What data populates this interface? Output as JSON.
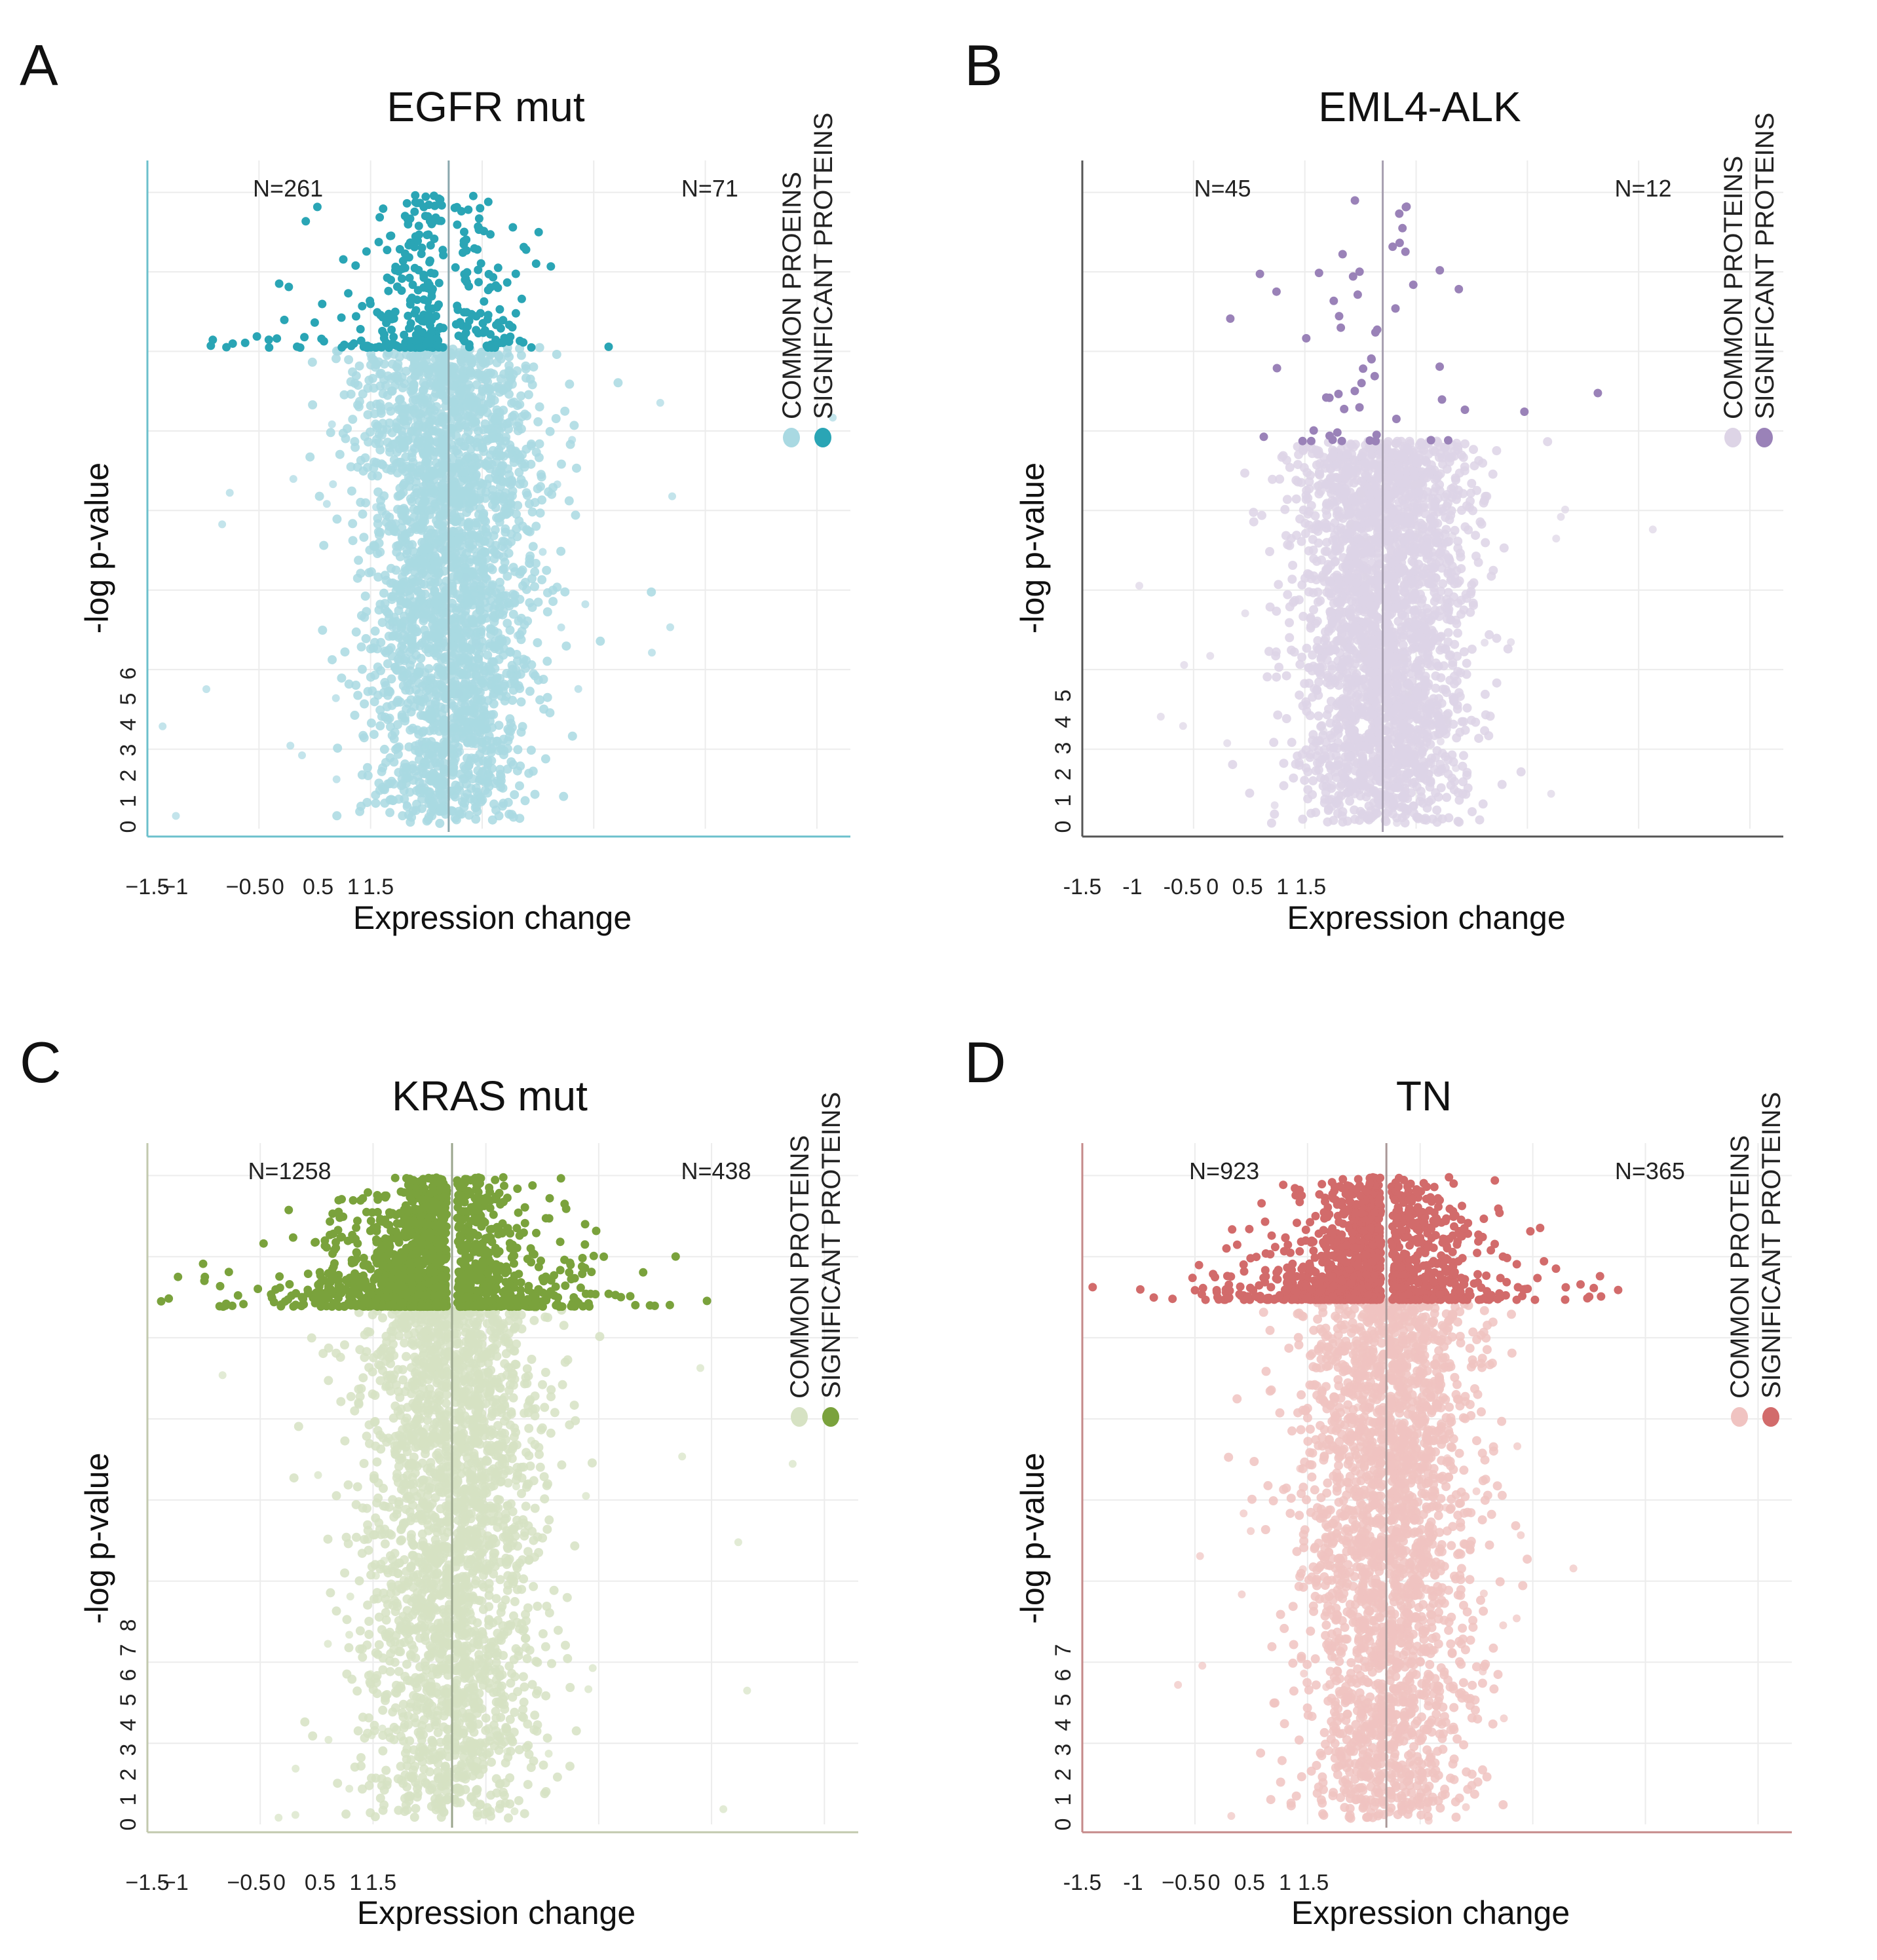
{
  "figure": {
    "panels": [
      "A",
      "B",
      "C",
      "D"
    ]
  },
  "chart_data": [
    {
      "type": "scatter",
      "panel": "A",
      "title": "EGFR mut",
      "xlabel": "Expression change",
      "ylabel": "-log p-value",
      "left_count": "N=261",
      "right_count": "N=71",
      "xlim": [
        -1.5,
        5.5
      ],
      "x_tick_labels": [
        "−1.5",
        "−1",
        "−0.5",
        "0",
        "0.5",
        "1",
        "1.5"
      ],
      "y_tick_labels": [
        "0",
        "1",
        "2",
        "3",
        "4",
        "5",
        "6"
      ],
      "legend": [
        "COMMON PROEINS",
        "SIGNIFICANT PROTEINS"
      ],
      "colors": {
        "common": "#a9d9e2",
        "significant": "#2aa5b5",
        "axis": "#6cc0cc",
        "center": "#8aa7ad"
      },
      "significance_threshold_y": 0.72,
      "series": [
        {
          "name": "common proteins",
          "count": 2600
        },
        {
          "name": "significant proteins",
          "count": 332
        }
      ]
    },
    {
      "type": "scatter",
      "panel": "B",
      "title": "EML4-ALK",
      "xlabel": "Expression change",
      "ylabel": "-log p-value",
      "left_count": "N=45",
      "right_count": "N=12",
      "xlim": [
        -1.5,
        5.5
      ],
      "x_tick_labels": [
        "-1.5",
        "-1",
        "-0.5",
        "0",
        "0.5",
        "1",
        "1.5"
      ],
      "y_tick_labels": [
        "0",
        "1",
        "2",
        "3",
        "4",
        "5"
      ],
      "legend": [
        "COMMON PROTEINS",
        "SIGNIFICANT PROTEINS"
      ],
      "colors": {
        "common": "#ddd4e6",
        "significant": "#9a82b8",
        "axis": "#555555",
        "center": "#a79fb0"
      },
      "significance_threshold_y": 0.58,
      "series": [
        {
          "name": "common proteins",
          "count": 2600
        },
        {
          "name": "significant proteins",
          "count": 57
        }
      ]
    },
    {
      "type": "scatter",
      "panel": "C",
      "title": "KRAS mut",
      "xlabel": "Expression change",
      "ylabel": "-log p-value",
      "left_count": "N=1258",
      "right_count": "N=438",
      "xlim": [
        -1.5,
        5.5
      ],
      "x_tick_labels": [
        "−1.5",
        "−1",
        "−0.5",
        "0",
        "0.5",
        "1",
        "1.5"
      ],
      "y_tick_labels": [
        "0",
        "1",
        "2",
        "3",
        "4",
        "5",
        "6",
        "7",
        "8"
      ],
      "legend": [
        "COMMON PROTEINS",
        "SIGNIFICANT PROTEINS"
      ],
      "colors": {
        "common": "#d6e2c3",
        "significant": "#7aa23c",
        "axis": "#c2c9ae",
        "center": "#9aa58d"
      },
      "significance_threshold_y": 0.76,
      "series": [
        {
          "name": "common proteins",
          "count": 2400
        },
        {
          "name": "significant proteins",
          "count": 1696
        }
      ]
    },
    {
      "type": "scatter",
      "panel": "D",
      "title": "TN",
      "xlabel": "Expression change",
      "ylabel": "-log p-value",
      "left_count": "N=923",
      "right_count": "N=365",
      "xlim": [
        -1.5,
        5.5
      ],
      "x_tick_labels": [
        "-1.5",
        "-1",
        "−0.5",
        "0",
        "0.5",
        "1",
        "1.5"
      ],
      "y_tick_labels": [
        "0",
        "1",
        "2",
        "3",
        "4",
        "5",
        "6",
        "7"
      ],
      "legend": [
        "COMMON PROTEINS",
        "SIGNIFICANT PROTEINS"
      ],
      "colors": {
        "common": "#f0c3c1",
        "significant": "#d26b6b",
        "axis": "#c58a8a",
        "center": "#a99797"
      },
      "significance_threshold_y": 0.77,
      "series": [
        {
          "name": "common proteins",
          "count": 2400
        },
        {
          "name": "significant proteins",
          "count": 1288
        }
      ]
    }
  ]
}
